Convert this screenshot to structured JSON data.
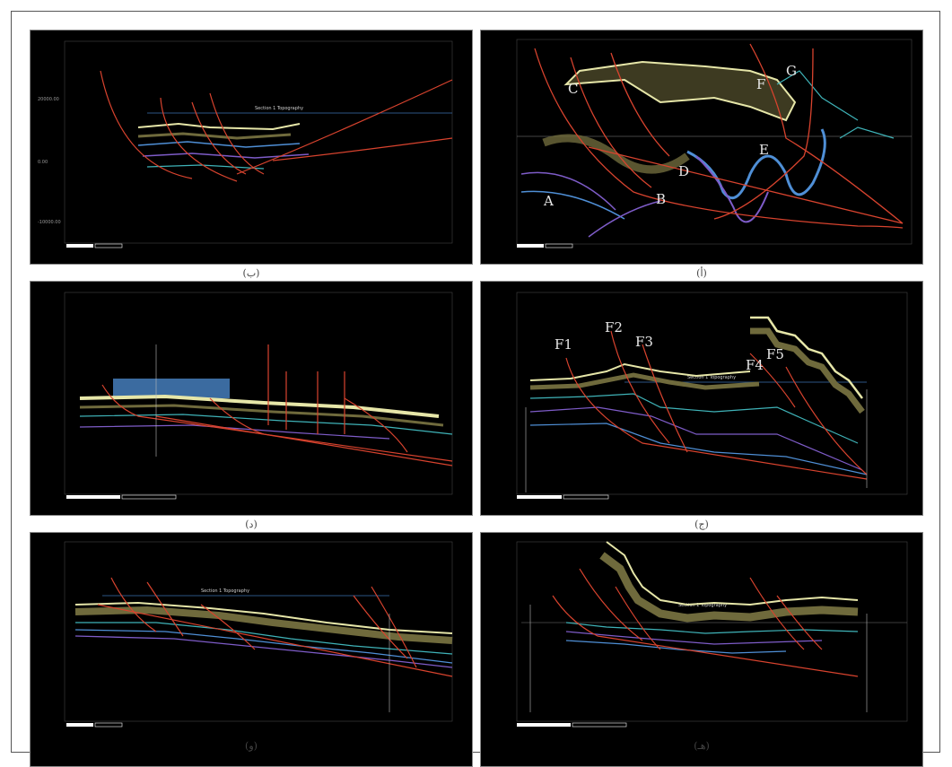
{
  "panels": [
    {
      "id": "a",
      "caption": "(ب)",
      "annotations": [
        "Section 1 Topography"
      ],
      "labels": []
    },
    {
      "id": "b",
      "caption": "(أ)",
      "annotations": [],
      "labels": [
        "A",
        "B",
        "C",
        "D",
        "E",
        "F",
        "G"
      ]
    },
    {
      "id": "c",
      "caption": "(د)",
      "annotations": [],
      "labels": []
    },
    {
      "id": "d",
      "caption": "(ج)",
      "annotations": [
        "Section 1 Topography"
      ],
      "labels": [
        "F1",
        "F2",
        "F3",
        "F4",
        "F5"
      ]
    },
    {
      "id": "e",
      "caption": "(و)",
      "annotations": [
        "Section 1 Topography"
      ],
      "labels": []
    },
    {
      "id": "f",
      "caption": "(هـ)",
      "annotations": [
        "Section 1 Topography"
      ],
      "labels": []
    }
  ],
  "colors": {
    "fault": "#d8432e",
    "horizon_yellow": "#e6e6a8",
    "horizon_olive": "#6f6a3c",
    "horizon_blue": "#4f8fd6",
    "horizon_purple": "#7e5cc8",
    "horizon_cyan": "#3fb3b8",
    "horizon_orange": "#d07a2a",
    "topography_line": "#3a6fb0",
    "scale_bar": "#ffffff"
  }
}
